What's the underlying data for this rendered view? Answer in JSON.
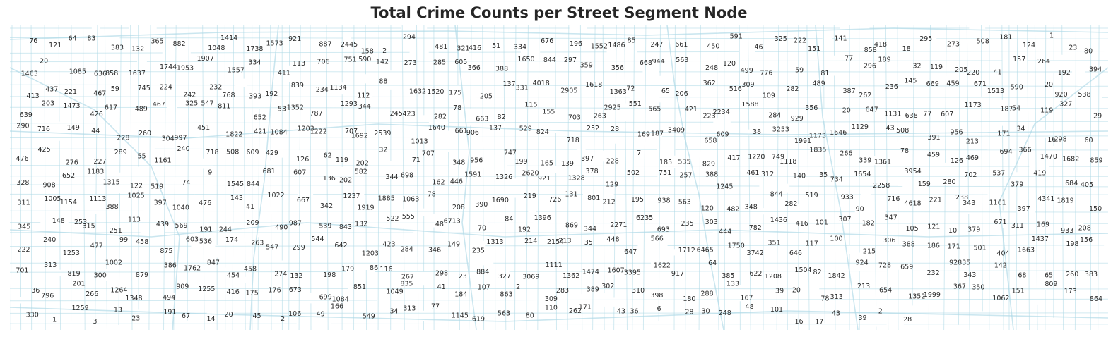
{
  "map": {
    "title": "Total Crime Counts per Street Segment Node",
    "street_color": "#add8e6",
    "label_color": "#2b2b2b",
    "labels": [
      "76",
      "121",
      "64",
      "83",
      "383",
      "132",
      "365",
      "882",
      "1048",
      "1414",
      "1738",
      "1573",
      "921",
      "887",
      "2445",
      "158",
      "2",
      "294",
      "481",
      "321",
      "416",
      "51",
      "334",
      "676",
      "196",
      "1552",
      "1486",
      "85",
      "247",
      "661",
      "450",
      "591",
      "46",
      "325",
      "222",
      "151",
      "141",
      "858",
      "418",
      "18",
      "295",
      "273",
      "508",
      "181",
      "124",
      "1",
      "23",
      "80",
      "1463",
      "20",
      "1085",
      "636",
      "858",
      "1637",
      "1744",
      "1953",
      "1907",
      "1557",
      "334",
      "411",
      "113",
      "706",
      "751",
      "590",
      "142",
      "273",
      "285",
      "605",
      "366",
      "388",
      "1650",
      "844",
      "297",
      "359",
      "356",
      "668",
      "944",
      "563",
      "248",
      "120",
      "499",
      "776",
      "59",
      "81",
      "77",
      "296",
      "189",
      "32",
      "119",
      "205",
      "220",
      "41",
      "157",
      "264",
      "192",
      "394",
      "413",
      "437",
      "221",
      "467",
      "59",
      "745",
      "224",
      "242",
      "232",
      "768",
      "393",
      "192",
      "839",
      "234",
      "1134",
      "112",
      "88",
      "1632",
      "1520",
      "175",
      "205",
      "137",
      "331",
      "4018",
      "2905",
      "1618",
      "1363",
      "72",
      "65",
      "206",
      "362",
      "516",
      "309",
      "109",
      "282",
      "489",
      "387",
      "262",
      "236",
      "145",
      "669",
      "459",
      "671",
      "1513",
      "590",
      "20",
      "920",
      "538",
      "639",
      "203",
      "1473",
      "426",
      "617",
      "489",
      "467",
      "325",
      "547",
      "811",
      "652",
      "53",
      "1352",
      "787",
      "1293",
      "344",
      "245",
      "423",
      "282",
      "78",
      "663",
      "82",
      "115",
      "155",
      "703",
      "263",
      "2925",
      "551",
      "565",
      "421",
      "223",
      "2234",
      "1588",
      "284",
      "929",
      "356",
      "20",
      "647",
      "1131",
      "638",
      "77",
      "607",
      "1173",
      "187",
      "54",
      "119",
      "327",
      "29",
      "290",
      "716",
      "149",
      "44",
      "228",
      "260",
      "304",
      "997",
      "451",
      "1822",
      "421",
      "1084",
      "1203",
      "1222",
      "707",
      "1692",
      "2539",
      "1013",
      "1640",
      "661",
      "906",
      "137",
      "529",
      "824",
      "718",
      "252",
      "28",
      "169",
      "187",
      "3409",
      "658",
      "609",
      "38",
      "3253",
      "1991",
      "1173",
      "1646",
      "1129",
      "43",
      "508",
      "391",
      "956",
      "213",
      "171",
      "34",
      "16",
      "298",
      "60",
      "476",
      "425",
      "276",
      "227",
      "289",
      "55",
      "1161",
      "240",
      "718",
      "508",
      "609",
      "429",
      "126",
      "62",
      "119",
      "202",
      "32",
      "71",
      "707",
      "348",
      "956",
      "747",
      "199",
      "165",
      "139",
      "397",
      "228",
      "7",
      "185",
      "535",
      "829",
      "417",
      "1220",
      "749",
      "1118",
      "1835",
      "266",
      "339",
      "1361",
      "78",
      "459",
      "126",
      "469",
      "694",
      "366",
      "1470",
      "1682",
      "859",
      "328",
      "908",
      "652",
      "1183",
      "1315",
      "122",
      "519",
      "74",
      "9",
      "1545",
      "844",
      "681",
      "607",
      "136",
      "202",
      "582",
      "344",
      "698",
      "162",
      "446",
      "1591",
      "1326",
      "2620",
      "921",
      "1328",
      "378",
      "129",
      "502",
      "751",
      "257",
      "388",
      "1245",
      "461",
      "312",
      "140",
      "35",
      "734",
      "1654",
      "2258",
      "3954",
      "159",
      "280",
      "702",
      "537",
      "379",
      "419",
      "684",
      "405",
      "311",
      "1005",
      "1154",
      "1113",
      "388",
      "1025",
      "397",
      "1040",
      "476",
      "143",
      "41",
      "1022",
      "667",
      "342",
      "1237",
      "1919",
      "1885",
      "1063",
      "78",
      "208",
      "390",
      "1690",
      "219",
      "726",
      "131",
      "801",
      "212",
      "195",
      "938",
      "563",
      "120",
      "482",
      "348",
      "844",
      "282",
      "519",
      "933",
      "90",
      "716",
      "4618",
      "221",
      "238",
      "343",
      "1161",
      "397",
      "4341",
      "1819",
      "150",
      "345",
      "148",
      "253",
      "315",
      "251",
      "113",
      "439",
      "569",
      "191",
      "244",
      "209",
      "490",
      "987",
      "539",
      "843",
      "132",
      "522",
      "555",
      "48",
      "6713",
      "70",
      "84",
      "192",
      "1396",
      "869",
      "344",
      "2271",
      "6235",
      "693",
      "235",
      "303",
      "444",
      "782",
      "1436",
      "416",
      "101",
      "307",
      "182",
      "347",
      "105",
      "121",
      "10",
      "379",
      "671",
      "311",
      "169",
      "933",
      "208",
      "222",
      "240",
      "1253",
      "477",
      "99",
      "458",
      "875",
      "603",
      "536",
      "174",
      "263",
      "547",
      "299",
      "544",
      "642",
      "1203",
      "423",
      "284",
      "346",
      "149",
      "235",
      "1313",
      "214",
      "2154",
      "213",
      "35",
      "448",
      "647",
      "566",
      "1712",
      "6465",
      "1750",
      "3742",
      "351",
      "646",
      "117",
      "100",
      "215",
      "306",
      "388",
      "186",
      "171",
      "501",
      "404",
      "1663",
      "1437",
      "198",
      "156",
      "701",
      "313",
      "819",
      "300",
      "1002",
      "879",
      "386",
      "1762",
      "847",
      "454",
      "458",
      "274",
      "132",
      "198",
      "179",
      "86",
      "116",
      "267",
      "298",
      "23",
      "884",
      "327",
      "3069",
      "1111",
      "1362",
      "1474",
      "1607",
      "3395",
      "1622",
      "917",
      "64",
      "385",
      "622",
      "1208",
      "1504",
      "82",
      "1842",
      "924",
      "728",
      "659",
      "232",
      "92835",
      "343",
      "142",
      "68",
      "65",
      "260",
      "383",
      "36",
      "796",
      "201",
      "266",
      "1264",
      "1348",
      "494",
      "909",
      "1255",
      "416",
      "175",
      "176",
      "673",
      "699",
      "1084",
      "851",
      "1049",
      "835",
      "41",
      "184",
      "107",
      "863",
      "2",
      "309",
      "283",
      "389",
      "302",
      "310",
      "398",
      "180",
      "288",
      "133",
      "167",
      "39",
      "20",
      "78",
      "313",
      "213",
      "654",
      "1352",
      "1999",
      "367",
      "350",
      "1062",
      "151",
      "809",
      "173",
      "864",
      "330",
      "1",
      "1259",
      "3",
      "13",
      "23",
      "191",
      "67",
      "14",
      "20",
      "45",
      "2",
      "106",
      "49",
      "166",
      "549",
      "34",
      "313",
      "77",
      "1145",
      "619",
      "563",
      "80",
      "110",
      "262",
      "171",
      "43",
      "36",
      "6",
      "28",
      "30",
      "248",
      "48",
      "101",
      "16",
      "17",
      "43",
      "39",
      "2",
      "28"
    ]
  }
}
